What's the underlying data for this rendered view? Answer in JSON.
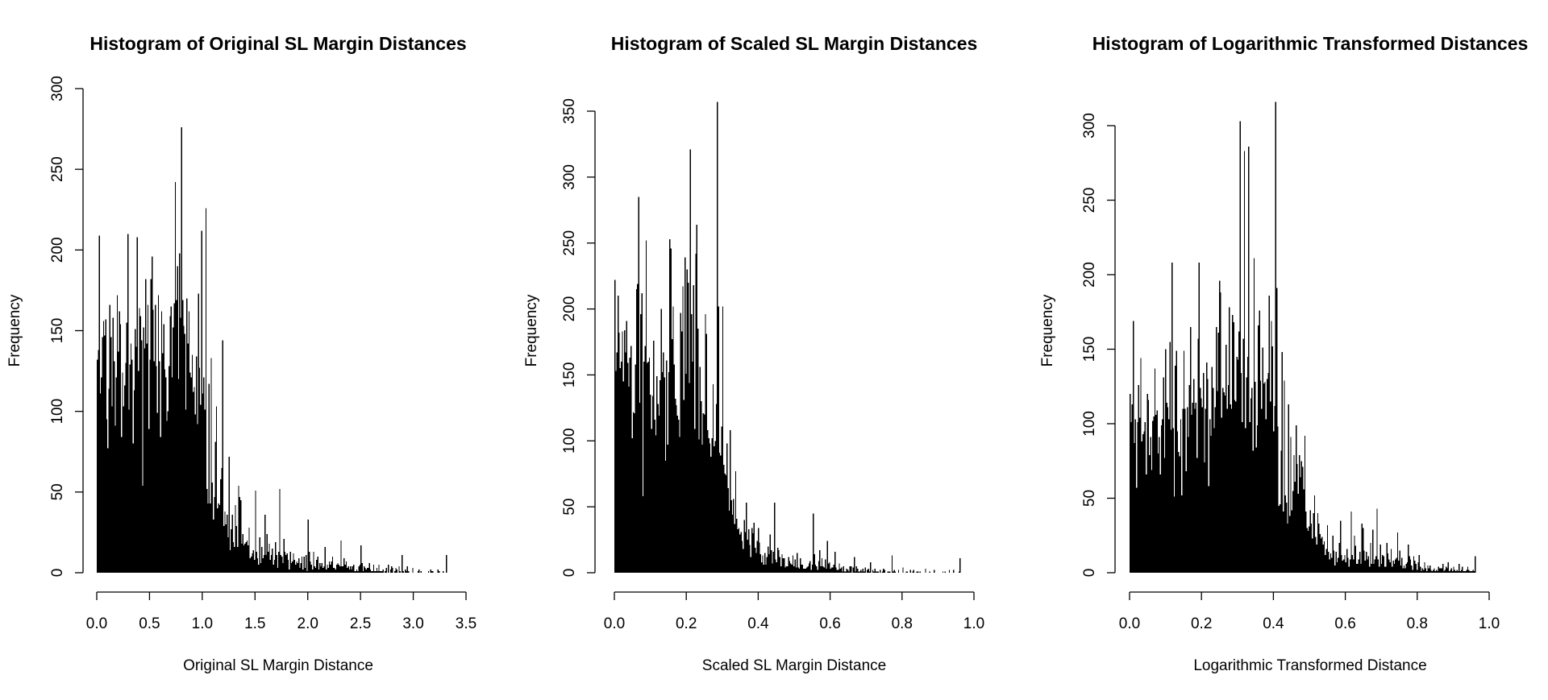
{
  "colors": {
    "bar": "#000000",
    "axis": "#000000",
    "background": "#ffffff"
  },
  "chart_data": [
    {
      "type": "bar",
      "title": "Histogram of Original SL Margin Distances",
      "xlabel": "Original SL Margin Distance",
      "ylabel": "Frequency",
      "xlim": [
        0,
        3.5
      ],
      "ylim": [
        0,
        300
      ],
      "x_ticks": [
        0.0,
        0.5,
        1.0,
        1.5,
        2.0,
        2.5,
        3.0,
        3.5
      ],
      "x_tick_labels": [
        "0.0",
        "0.5",
        "1.0",
        "1.5",
        "2.0",
        "2.5",
        "3.0",
        "3.5"
      ],
      "y_ticks": [
        0,
        50,
        100,
        150,
        200,
        250,
        300
      ],
      "y_tick_labels": [
        "0",
        "50",
        "100",
        "150",
        "200",
        "250",
        "300"
      ],
      "grid": false,
      "bin_width": 0.01,
      "bin_start": 0.0,
      "values": [
        132,
        138,
        209,
        111,
        121,
        146,
        156,
        147,
        157,
        95,
        77,
        114,
        166,
        146,
        103,
        158,
        131,
        91,
        121,
        172,
        137,
        162,
        154,
        84,
        124,
        103,
        116,
        130,
        155,
        210,
        101,
        129,
        142,
        132,
        80,
        113,
        151,
        140,
        208,
        125,
        164,
        159,
        144,
        54,
        152,
        139,
        182,
        142,
        166,
        89,
        132,
        182,
        196,
        163,
        131,
        166,
        128,
        99,
        172,
        131,
        84,
        162,
        136,
        154,
        126,
        121,
        94,
        100,
        128,
        159,
        165,
        121,
        152,
        167,
        242,
        169,
        190,
        120,
        198,
        158,
        276,
        169,
        153,
        148,
        101,
        170,
        142,
        162,
        124,
        121,
        135,
        112,
        115,
        98,
        134,
        92,
        173,
        127,
        104,
        212,
        111,
        121,
        101,
        226,
        52,
        43,
        117,
        43,
        133,
        56,
        33,
        47,
        81,
        103,
        40,
        43,
        42,
        58,
        65,
        144,
        29,
        38,
        30,
        36,
        22,
        72,
        14,
        27,
        36,
        19,
        16,
        42,
        29,
        16,
        54,
        47,
        45,
        18,
        24,
        17,
        18,
        19,
        20,
        17,
        28,
        9,
        10,
        12,
        14,
        8,
        51,
        13,
        9,
        5,
        22,
        6,
        16,
        9,
        11,
        36,
        11,
        24,
        13,
        18,
        8,
        11,
        15,
        5,
        8,
        19,
        11,
        3,
        13,
        52,
        11,
        10,
        6,
        21,
        13,
        11,
        12,
        8,
        2,
        13,
        6,
        7,
        12,
        8,
        5,
        7,
        6,
        9,
        3,
        6,
        10,
        2,
        10,
        3,
        11,
        1,
        33,
        13,
        7,
        5,
        2,
        13,
        4,
        3,
        8,
        10,
        2,
        6,
        4,
        6,
        3,
        4,
        16,
        2,
        5,
        3,
        7,
        5,
        7,
        10,
        3,
        3,
        2,
        5,
        6,
        5,
        4,
        20,
        4,
        4,
        9,
        5,
        7,
        3,
        4,
        2,
        4,
        2,
        4,
        5,
        1,
        1,
        2,
        1,
        4,
        5,
        17,
        6,
        1,
        4,
        3,
        2,
        3,
        3,
        6,
        2,
        1,
        1,
        5,
        1,
        1,
        3,
        1,
        5,
        1,
        1,
        1,
        2,
        0,
        1,
        3,
        0,
        5,
        0,
        2,
        4,
        3,
        0,
        1,
        3,
        2,
        0,
        4,
        1,
        0,
        11,
        1,
        0,
        2,
        1,
        4,
        1,
        0,
        0,
        0,
        3,
        0,
        0,
        0,
        0,
        1,
        2,
        0,
        1,
        0,
        0,
        0,
        0,
        0,
        0,
        1,
        0,
        2,
        1,
        1,
        0,
        0,
        0,
        0,
        2,
        1,
        0,
        0,
        0,
        1,
        0,
        0,
        11
      ]
    },
    {
      "type": "bar",
      "title": "Histogram of Scaled SL Margin Distances",
      "xlabel": "Scaled SL Margin Distance",
      "ylabel": "Frequency",
      "xlim": [
        0,
        1
      ],
      "ylim": [
        0,
        350
      ],
      "x_ticks": [
        0.0,
        0.2,
        0.4,
        0.6,
        0.8,
        1.0
      ],
      "x_tick_labels": [
        "0.0",
        "0.2",
        "0.4",
        "0.6",
        "0.8",
        "1.0"
      ],
      "y_ticks": [
        0,
        50,
        100,
        150,
        200,
        250,
        300,
        350
      ],
      "y_tick_labels": [
        "0",
        "50",
        "100",
        "150",
        "200",
        "250",
        "300",
        "350"
      ],
      "grid": false,
      "bin_width": 0.003,
      "bin_start": 0.0,
      "values": [
        222,
        153,
        167,
        210,
        182,
        155,
        160,
        183,
        145,
        184,
        167,
        191,
        159,
        141,
        163,
        172,
        102,
        122,
        121,
        158,
        215,
        219,
        285,
        129,
        196,
        212,
        58,
        160,
        172,
        252,
        159,
        160,
        163,
        135,
        109,
        134,
        176,
        116,
        104,
        149,
        128,
        119,
        146,
        200,
        152,
        167,
        148,
        85,
        161,
        97,
        152,
        253,
        246,
        177,
        202,
        158,
        132,
        127,
        119,
        116,
        103,
        197,
        183,
        217,
        131,
        239,
        151,
        230,
        220,
        144,
        321,
        196,
        160,
        218,
        109,
        242,
        264,
        185,
        101,
        156,
        130,
        97,
        121,
        120,
        196,
        181,
        108,
        102,
        98,
        88,
        102,
        143,
        96,
        100,
        128,
        357,
        202,
        91,
        89,
        111,
        202,
        82,
        75,
        74,
        98,
        64,
        47,
        108,
        55,
        44,
        56,
        37,
        77,
        41,
        33,
        34,
        29,
        31,
        24,
        18,
        40,
        31,
        53,
        25,
        33,
        21,
        12,
        34,
        30,
        38,
        19,
        15,
        24,
        34,
        23,
        14,
        8,
        13,
        6,
        15,
        6,
        12,
        20,
        14,
        29,
        17,
        7,
        16,
        53,
        10,
        8,
        19,
        17,
        12,
        5,
        14,
        11,
        11,
        4,
        5,
        5,
        12,
        9,
        7,
        6,
        13,
        5,
        10,
        4,
        15,
        4,
        3,
        11,
        6,
        6,
        3,
        3,
        3,
        4,
        5,
        7,
        9,
        2,
        6,
        45,
        14,
        6,
        5,
        2,
        9,
        17,
        5,
        11,
        5,
        4,
        10,
        3,
        24,
        7,
        8,
        3,
        4,
        4,
        6,
        16,
        4,
        2,
        2,
        7,
        3,
        4,
        1,
        5,
        1,
        1,
        3,
        2,
        1,
        5,
        5,
        0,
        4,
        12,
        1,
        5,
        3,
        1,
        1,
        2,
        1,
        3,
        1,
        4,
        0,
        2,
        3,
        1,
        8,
        0,
        2,
        1,
        3,
        1,
        1,
        1,
        0,
        2,
        0,
        1,
        3,
        2,
        0,
        0,
        1,
        1,
        1,
        0,
        13,
        1,
        2,
        1,
        0,
        0,
        2,
        0,
        0,
        0,
        4,
        0,
        0,
        1,
        1,
        0,
        0,
        2,
        0,
        1,
        2,
        0,
        0,
        1,
        1,
        0,
        1,
        0,
        0,
        0,
        0,
        3,
        0,
        0,
        0,
        1,
        0,
        0,
        0,
        2,
        0,
        0,
        0,
        0,
        0,
        0,
        0,
        1,
        0,
        1,
        0,
        0,
        0,
        2,
        0,
        0,
        0,
        2,
        0,
        0,
        0,
        0,
        1,
        11
      ]
    },
    {
      "type": "bar",
      "title": "Histogram of Logarithmic Transformed Distances",
      "xlabel": "Logarithmic Transformed Distance",
      "ylabel": "Frequency",
      "xlim": [
        0,
        1
      ],
      "ylim": [
        0,
        300
      ],
      "x_ticks": [
        0.0,
        0.2,
        0.4,
        0.6,
        0.8,
        1.0
      ],
      "x_tick_labels": [
        "0.0",
        "0.2",
        "0.4",
        "0.6",
        "0.8",
        "1.0"
      ],
      "y_ticks": [
        0,
        50,
        100,
        150,
        200,
        250,
        300
      ],
      "y_tick_labels": [
        "0",
        "50",
        "100",
        "150",
        "200",
        "250",
        "300"
      ],
      "grid": false,
      "bin_width": 0.003,
      "bin_start": 0.0,
      "values": [
        120,
        101,
        113,
        169,
        87,
        103,
        57,
        101,
        126,
        104,
        144,
        88,
        93,
        95,
        101,
        66,
        120,
        116,
        79,
        91,
        69,
        102,
        105,
        137,
        106,
        109,
        80,
        91,
        66,
        99,
        103,
        131,
        77,
        150,
        114,
        111,
        103,
        155,
        96,
        208,
        97,
        51,
        139,
        149,
        95,
        81,
        78,
        103,
        52,
        110,
        149,
        110,
        68,
        111,
        91,
        126,
        165,
        106,
        114,
        130,
        110,
        114,
        77,
        157,
        208,
        124,
        117,
        111,
        134,
        74,
        110,
        141,
        130,
        58,
        103,
        92,
        138,
        124,
        97,
        111,
        165,
        122,
        161,
        196,
        188,
        104,
        124,
        121,
        119,
        153,
        110,
        126,
        178,
        113,
        110,
        173,
        168,
        116,
        115,
        145,
        143,
        162,
        303,
        134,
        101,
        157,
        283,
        97,
        131,
        145,
        286,
        101,
        117,
        124,
        82,
        211,
        128,
        84,
        99,
        166,
        176,
        129,
        110,
        151,
        127,
        128,
        103,
        130,
        134,
        186,
        115,
        169,
        152,
        95,
        112,
        316,
        191,
        98,
        45,
        46,
        82,
        148,
        41,
        129,
        52,
        47,
        33,
        113,
        38,
        91,
        42,
        55,
        79,
        61,
        99,
        73,
        53,
        79,
        64,
        75,
        71,
        56,
        92,
        41,
        30,
        28,
        31,
        42,
        33,
        23,
        40,
        52,
        24,
        19,
        40,
        33,
        26,
        23,
        24,
        19,
        21,
        12,
        16,
        32,
        14,
        9,
        13,
        10,
        25,
        15,
        5,
        14,
        7,
        10,
        20,
        35,
        12,
        8,
        9,
        12,
        7,
        16,
        10,
        4,
        9,
        41,
        12,
        9,
        25,
        18,
        6,
        6,
        9,
        14,
        6,
        33,
        30,
        15,
        8,
        14,
        9,
        11,
        4,
        20,
        6,
        29,
        6,
        9,
        11,
        43,
        9,
        4,
        19,
        6,
        12,
        11,
        4,
        4,
        20,
        13,
        9,
        7,
        16,
        4,
        8,
        6,
        9,
        10,
        27,
        8,
        15,
        5,
        10,
        3,
        5,
        3,
        6,
        7,
        19,
        11,
        9,
        5,
        2,
        11,
        8,
        6,
        2,
        7,
        12,
        4,
        1,
        3,
        2,
        7,
        3,
        1,
        5,
        3,
        5,
        2,
        1,
        2,
        3,
        1,
        2,
        1,
        4,
        3,
        3,
        3,
        6,
        1,
        2,
        4,
        3,
        7,
        1,
        2,
        3,
        1,
        4,
        2,
        1,
        2,
        1,
        6,
        1,
        2,
        4,
        1,
        1,
        1,
        2,
        4,
        2,
        1,
        1,
        1,
        2,
        1,
        11
      ]
    }
  ]
}
